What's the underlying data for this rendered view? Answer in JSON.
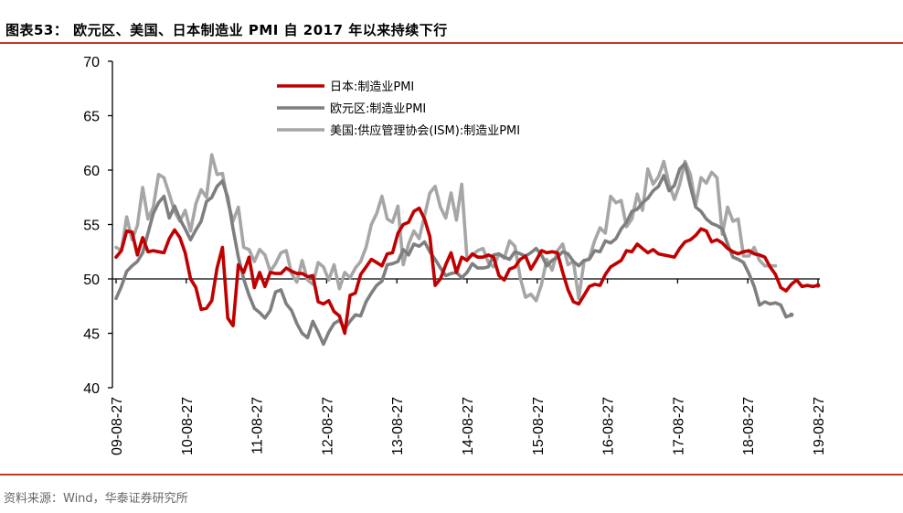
{
  "header": {
    "title": "图表53：  欧元区、美国、日本制造业 PMI 自 2017 年以来持续下行"
  },
  "footer": {
    "source": "资料来源：Wind，华泰证券研究所"
  },
  "colors": {
    "accent_rule": "#c0392b",
    "japan": "#c00000",
    "eurozone": "#7f7f7f",
    "usa": "#a6a6a6",
    "axis": "#000000"
  },
  "chart_data": {
    "type": "line",
    "title": "",
    "xlabel": "",
    "ylabel": "",
    "ylim": [
      40,
      70
    ],
    "y_ticks": [
      40,
      45,
      50,
      55,
      60,
      65,
      70
    ],
    "x_tick_labels": [
      "09-08-27",
      "10-08-27",
      "11-08-27",
      "12-08-27",
      "13-08-27",
      "14-08-27",
      "15-08-27",
      "16-08-27",
      "17-08-27",
      "18-08-27",
      "19-08-27"
    ],
    "reference_line": 50,
    "grid": false,
    "legend_position": "top-center",
    "x_start": "2009-08",
    "x_end": "2019-08",
    "series": [
      {
        "name": "日本:制造业PMI",
        "color": "#c00000",
        "values": [
          52.0,
          52.6,
          54.4,
          54.3,
          52.2,
          53.8,
          52.5,
          52.6,
          52.5,
          52.4,
          53.7,
          54.5,
          53.8,
          52.4,
          50.0,
          49.2,
          47.2,
          47.3,
          48.0,
          51.0,
          52.9,
          46.4,
          45.7,
          51.3,
          50.6,
          52.0,
          49.2,
          50.6,
          49.3,
          50.6,
          50.5,
          50.5,
          51.0,
          50.7,
          50.5,
          50.5,
          50.2,
          50.3,
          47.9,
          47.7,
          48.0,
          47.0,
          46.6,
          45.0,
          48.5,
          48.7,
          50.4,
          51.1,
          51.8,
          51.5,
          51.2,
          52.3,
          52.4,
          54.2,
          55.0,
          55.2,
          56.2,
          56.5,
          55.5,
          53.9,
          49.4,
          50.0,
          51.3,
          52.4,
          50.6,
          52.0,
          51.7,
          52.3,
          52.0,
          52.0,
          52.2,
          52.0,
          50.3,
          49.9,
          50.9,
          51.1,
          51.8,
          52.1,
          50.9,
          51.7,
          52.6,
          52.4,
          52.5,
          52.4,
          50.6,
          49.0,
          47.9,
          47.7,
          48.5,
          49.3,
          49.5,
          49.4,
          50.4,
          51.1,
          51.4,
          51.7,
          52.6,
          52.5,
          53.2,
          52.8,
          52.4,
          52.7,
          52.3,
          52.2,
          52.1,
          52.0,
          52.8,
          53.4,
          53.6,
          54.0,
          54.6,
          54.4,
          53.4,
          53.6,
          53.3,
          52.8,
          52.5,
          52.3,
          52.5,
          52.6,
          52.3,
          52.2,
          52.0,
          51.1,
          50.4,
          49.2,
          48.9,
          49.5,
          49.9,
          49.3,
          49.4,
          49.3,
          49.4
        ],
        "end_marker": "dot"
      },
      {
        "name": "欧元区:制造业PMI",
        "color": "#7f7f7f",
        "values": [
          48.2,
          49.3,
          50.7,
          51.2,
          51.6,
          52.4,
          54.2,
          56.0,
          57.0,
          57.6,
          55.6,
          56.7,
          55.5,
          54.6,
          53.6,
          54.5,
          55.3,
          57.1,
          57.5,
          58.5,
          59.0,
          57.5,
          54.6,
          52.0,
          50.0,
          48.5,
          47.3,
          46.9,
          46.4,
          47.1,
          48.8,
          49.0,
          47.7,
          47.1,
          45.9,
          45.0,
          44.6,
          46.1,
          45.1,
          44.0,
          45.1,
          45.9,
          46.2,
          45.4,
          46.1,
          46.7,
          46.6,
          47.9,
          48.7,
          49.4,
          49.8,
          51.3,
          51.4,
          51.6,
          52.7,
          52.2,
          53.2,
          53.0,
          53.4,
          52.5,
          51.8,
          51.0,
          50.3,
          50.5,
          50.6,
          50.1,
          50.6,
          51.4,
          51.0,
          51.0,
          51.1,
          52.2,
          52.3,
          52.0,
          51.8,
          52.5,
          52.3,
          52.1,
          52.4,
          52.8,
          52.2,
          51.2,
          51.7,
          52.0,
          52.5,
          52.3,
          51.6,
          51.2,
          51.7,
          51.8,
          52.6,
          52.5,
          53.5,
          53.3,
          53.7,
          54.6,
          55.2,
          56.2,
          56.4,
          57.0,
          57.4,
          58.1,
          58.5,
          59.5,
          58.1,
          58.6,
          60.1,
          60.6,
          58.5,
          56.6,
          56.2,
          55.5,
          55.1,
          54.9,
          54.6,
          53.2,
          52.0,
          51.8,
          51.5,
          50.5,
          49.3,
          47.6,
          47.9,
          47.7,
          47.8,
          47.6,
          46.5,
          46.7
        ],
        "end_marker": "dot"
      },
      {
        "name": "美国:供应管理协会(ISM):制造业PMI",
        "color": "#a6a6a6",
        "values": [
          52.9,
          52.6,
          55.7,
          53.6,
          54.9,
          58.4,
          55.5,
          56.6,
          59.6,
          59.3,
          57.8,
          56.2,
          55.3,
          56.3,
          54.4,
          56.9,
          58.2,
          57.5,
          61.4,
          59.6,
          59.7,
          57.1,
          55.3,
          56.6,
          52.9,
          52.7,
          51.6,
          52.7,
          52.2,
          50.7,
          51.4,
          52.4,
          52.6,
          50.5,
          49.7,
          51.7,
          49.9,
          49.5,
          51.5,
          51.1,
          49.9,
          51.3,
          49.1,
          50.6,
          50.1,
          51.0,
          51.6,
          52.9,
          55.0,
          56.0,
          57.6,
          55.5,
          55.2,
          56.7,
          51.3,
          53.2,
          54.4,
          53.7,
          55.8,
          57.9,
          58.5,
          56.6,
          55.6,
          57.9,
          55.4,
          58.7,
          51.8,
          52.2,
          52.6,
          52.8,
          51.5,
          51.1,
          52.3,
          51.9,
          53.5,
          53.0,
          50.1,
          48.3,
          48.6,
          48.0,
          49.5,
          51.8,
          50.8,
          52.6,
          53.2,
          51.3,
          51.6,
          48.2,
          51.6,
          51.9,
          53.5,
          54.7,
          54.2,
          57.6,
          57.0,
          57.2,
          54.8,
          55.5,
          57.8,
          56.3,
          60.1,
          58.7,
          59.4,
          60.8,
          58.7,
          57.3,
          58.7,
          60.8,
          59.6,
          56.8,
          59.3,
          58.8,
          59.8,
          59.3,
          54.1,
          56.6,
          55.3,
          55.5,
          52.1,
          52.1,
          52.9,
          51.7,
          51.2,
          51.2,
          51.2
        ],
        "end_marker": "none"
      }
    ]
  }
}
